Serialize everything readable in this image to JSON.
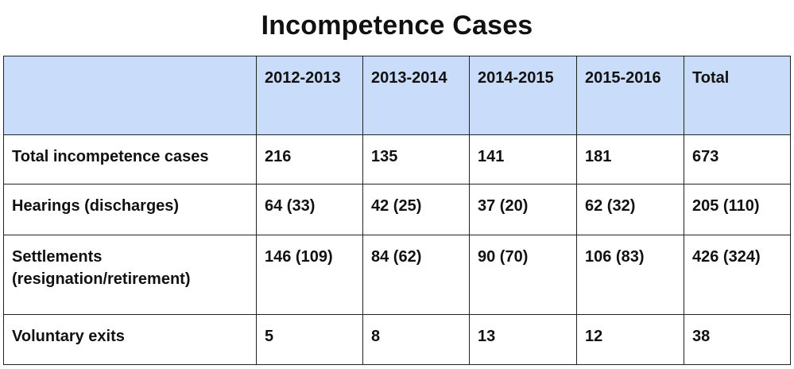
{
  "chart_data": {
    "type": "table",
    "title": "Incompetence Cases",
    "columns": [
      "",
      "2012-2013",
      "2013-2014",
      "2014-2015",
      "2015-2016",
      "Total"
    ],
    "rows": [
      [
        "Total incompetence cases",
        "216",
        "135",
        "141",
        "181",
        "673"
      ],
      [
        "Hearings (discharges)",
        "64 (33)",
        "42 (25)",
        "37 (20)",
        "62 (32)",
        "205 (110)"
      ],
      [
        "Settlements (resignation/retirement)",
        "146 (109)",
        "84 (62)",
        "90 (70)",
        "106 (83)",
        "426 (324)"
      ],
      [
        "Voluntary exits",
        "5",
        "8",
        "13",
        "12",
        "38"
      ]
    ]
  },
  "colors": {
    "header_background": "#c9dcfa",
    "border": "#222222",
    "text": "#111111"
  }
}
